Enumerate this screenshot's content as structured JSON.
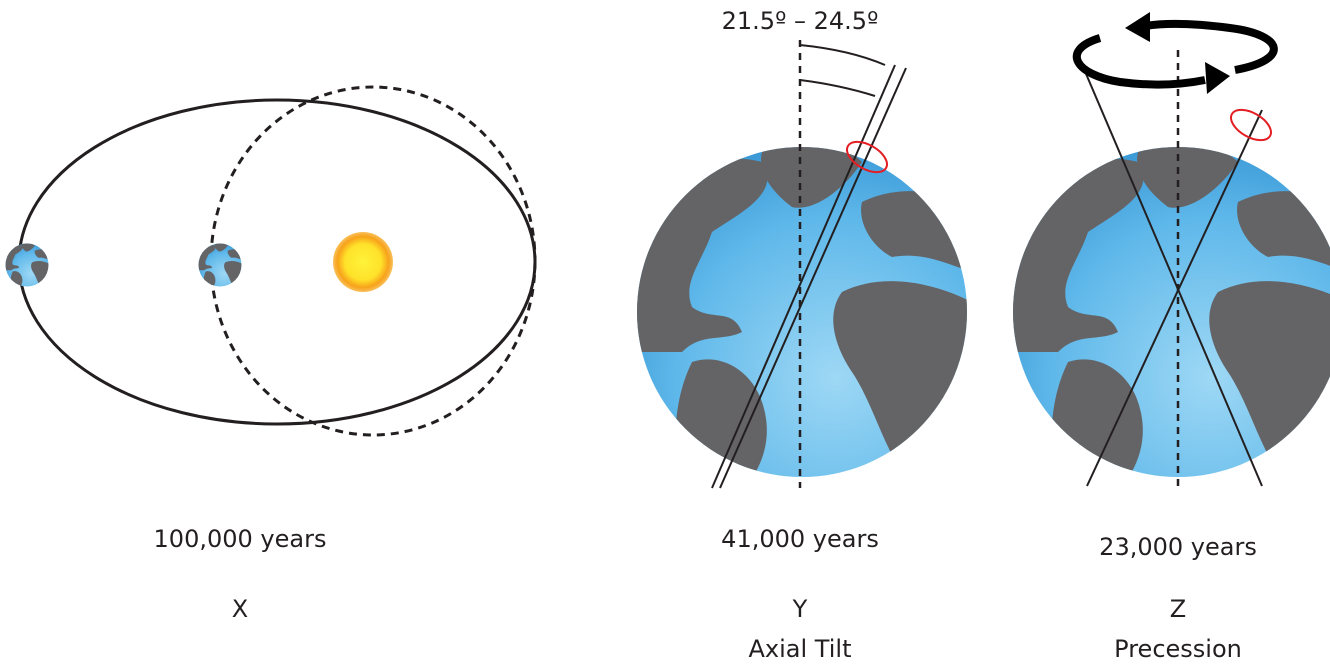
{
  "panels": [
    {
      "period": "100,000 years",
      "letter": "X"
    },
    {
      "annotation": "21.5º – 24.5º",
      "period": "41,000 years",
      "letter": "Y",
      "name": "Axial Tilt"
    },
    {
      "period": "23,000 years",
      "letter": "Z",
      "name": "Precession"
    }
  ]
}
